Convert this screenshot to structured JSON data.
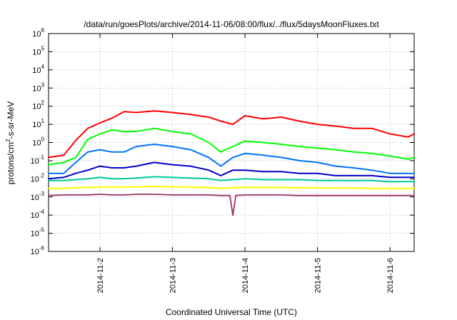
{
  "chart_data": {
    "type": "line",
    "title": "/data/run/goesPlots/archive/2014-11-06/08:00/flux/../flux/5daysMoonFluxes.txt",
    "xlabel": "Coordinated Universal Time (UTC)",
    "ylabel": {
      "prefix": "protons/cm",
      "superscript": "2",
      "suffix": "-s-sr-MeV"
    },
    "yscale": "log",
    "ylim": [
      "1e-6",
      "1e6"
    ],
    "y_ticks": [
      {
        "exp": "6"
      },
      {
        "exp": "5"
      },
      {
        "exp": "4"
      },
      {
        "exp": "3"
      },
      {
        "exp": "2"
      },
      {
        "exp": "1"
      },
      {
        "exp": "0"
      },
      {
        "exp": "-1"
      },
      {
        "exp": "-2"
      },
      {
        "exp": "-3"
      },
      {
        "exp": "-4"
      },
      {
        "exp": "-5"
      },
      {
        "exp": "-6"
      }
    ],
    "y_tick_base": "10",
    "xlim": [
      "2014-11-01T07:00",
      "2014-11-06T08:00"
    ],
    "x_ticks": [
      "2014-11-2",
      "2014-11-3",
      "2014-11-4",
      "2014-11-5",
      "2014-11-6"
    ],
    "x_tick_dates": [
      "2014-11-02",
      "2014-11-03",
      "2014-11-04",
      "2014-11-05",
      "2014-11-06"
    ],
    "grid": true,
    "legend": "none",
    "series": [
      {
        "color": "#ff0000",
        "x": [
          "2014-11-01T07:00",
          "2014-11-01T12:00",
          "2014-11-01T16:00",
          "2014-11-01T20:00",
          "2014-11-02T00:00",
          "2014-11-02T04:00",
          "2014-11-02T08:00",
          "2014-11-02T12:00",
          "2014-11-02T18:00",
          "2014-11-03T00:00",
          "2014-11-03T06:00",
          "2014-11-03T12:00",
          "2014-11-03T16:00",
          "2014-11-03T20:00",
          "2014-11-04T00:00",
          "2014-11-04T06:00",
          "2014-11-04T12:00",
          "2014-11-04T18:00",
          "2014-11-05T00:00",
          "2014-11-05T06:00",
          "2014-11-05T12:00",
          "2014-11-05T18:00",
          "2014-11-06T00:00",
          "2014-11-06T06:00",
          "2014-11-06T08:00"
        ],
        "y": [
          0.15,
          0.2,
          1.3,
          6,
          12,
          22,
          50,
          45,
          55,
          45,
          35,
          25,
          15,
          10,
          30,
          20,
          25,
          15,
          10,
          8,
          6,
          6,
          3,
          2,
          3
        ]
      },
      {
        "color": "#00ff00",
        "x": [
          "2014-11-01T07:00",
          "2014-11-01T12:00",
          "2014-11-01T16:00",
          "2014-11-01T20:00",
          "2014-11-02T00:00",
          "2014-11-02T04:00",
          "2014-11-02T08:00",
          "2014-11-02T12:00",
          "2014-11-02T18:00",
          "2014-11-03T00:00",
          "2014-11-03T06:00",
          "2014-11-03T12:00",
          "2014-11-03T16:00",
          "2014-11-03T20:00",
          "2014-11-04T00:00",
          "2014-11-04T06:00",
          "2014-11-04T12:00",
          "2014-11-04T18:00",
          "2014-11-05T00:00",
          "2014-11-05T06:00",
          "2014-11-05T12:00",
          "2014-11-05T18:00",
          "2014-11-06T00:00",
          "2014-11-06T06:00",
          "2014-11-06T08:00"
        ],
        "y": [
          0.06,
          0.08,
          0.15,
          1.5,
          3,
          5,
          4,
          4,
          6,
          4,
          3,
          1,
          0.3,
          0.6,
          1.2,
          1,
          0.8,
          0.6,
          0.5,
          0.4,
          0.3,
          0.25,
          0.18,
          0.12,
          0.15
        ]
      },
      {
        "color": "#0073ff",
        "x": [
          "2014-11-01T07:00",
          "2014-11-01T12:00",
          "2014-11-01T16:00",
          "2014-11-01T20:00",
          "2014-11-02T00:00",
          "2014-11-02T04:00",
          "2014-11-02T08:00",
          "2014-11-02T12:00",
          "2014-11-02T18:00",
          "2014-11-03T00:00",
          "2014-11-03T06:00",
          "2014-11-03T12:00",
          "2014-11-03T16:00",
          "2014-11-03T20:00",
          "2014-11-04T00:00",
          "2014-11-04T06:00",
          "2014-11-04T12:00",
          "2014-11-04T18:00",
          "2014-11-05T00:00",
          "2014-11-05T06:00",
          "2014-11-05T12:00",
          "2014-11-05T18:00",
          "2014-11-06T00:00",
          "2014-11-06T06:00",
          "2014-11-06T08:00"
        ],
        "y": [
          0.02,
          0.02,
          0.08,
          0.3,
          0.4,
          0.3,
          0.3,
          0.6,
          0.8,
          0.6,
          0.4,
          0.15,
          0.05,
          0.15,
          0.25,
          0.2,
          0.15,
          0.1,
          0.08,
          0.05,
          0.04,
          0.03,
          0.02,
          0.02,
          0.02
        ]
      },
      {
        "color": "#0000cc",
        "x": [
          "2014-11-01T07:00",
          "2014-11-01T12:00",
          "2014-11-01T16:00",
          "2014-11-01T20:00",
          "2014-11-02T00:00",
          "2014-11-02T04:00",
          "2014-11-02T08:00",
          "2014-11-02T12:00",
          "2014-11-02T18:00",
          "2014-11-03T00:00",
          "2014-11-03T06:00",
          "2014-11-03T12:00",
          "2014-11-03T16:00",
          "2014-11-03T20:00",
          "2014-11-04T00:00",
          "2014-11-04T06:00",
          "2014-11-04T12:00",
          "2014-11-04T18:00",
          "2014-11-05T00:00",
          "2014-11-05T06:00",
          "2014-11-05T12:00",
          "2014-11-05T18:00",
          "2014-11-06T00:00",
          "2014-11-06T06:00",
          "2014-11-06T08:00"
        ],
        "y": [
          0.01,
          0.012,
          0.02,
          0.03,
          0.05,
          0.04,
          0.04,
          0.05,
          0.08,
          0.06,
          0.05,
          0.03,
          0.015,
          0.03,
          0.03,
          0.025,
          0.025,
          0.02,
          0.02,
          0.015,
          0.015,
          0.015,
          0.012,
          0.012,
          0.012
        ]
      },
      {
        "color": "#00cc99",
        "x": [
          "2014-11-01T07:00",
          "2014-11-01T12:00",
          "2014-11-01T16:00",
          "2014-11-01T20:00",
          "2014-11-02T00:00",
          "2014-11-02T04:00",
          "2014-11-02T08:00",
          "2014-11-02T12:00",
          "2014-11-02T18:00",
          "2014-11-03T00:00",
          "2014-11-03T06:00",
          "2014-11-03T12:00",
          "2014-11-03T16:00",
          "2014-11-03T20:00",
          "2014-11-04T00:00",
          "2014-11-04T06:00",
          "2014-11-04T12:00",
          "2014-11-04T18:00",
          "2014-11-05T00:00",
          "2014-11-05T06:00",
          "2014-11-05T12:00",
          "2014-11-05T18:00",
          "2014-11-06T00:00",
          "2014-11-06T06:00",
          "2014-11-06T08:00"
        ],
        "y": [
          0.008,
          0.008,
          0.009,
          0.01,
          0.012,
          0.01,
          0.01,
          0.011,
          0.013,
          0.012,
          0.011,
          0.01,
          0.008,
          0.009,
          0.01,
          0.009,
          0.009,
          0.009,
          0.008,
          0.008,
          0.008,
          0.008,
          0.007,
          0.007,
          0.007
        ]
      },
      {
        "color": "#ffff00",
        "x": [
          "2014-11-01T07:00",
          "2014-11-01T12:00",
          "2014-11-01T16:00",
          "2014-11-01T20:00",
          "2014-11-02T00:00",
          "2014-11-02T04:00",
          "2014-11-02T08:00",
          "2014-11-02T12:00",
          "2014-11-02T18:00",
          "2014-11-03T00:00",
          "2014-11-03T06:00",
          "2014-11-03T12:00",
          "2014-11-03T16:00",
          "2014-11-03T20:00",
          "2014-11-04T00:00",
          "2014-11-04T06:00",
          "2014-11-04T12:00",
          "2014-11-04T18:00",
          "2014-11-05T00:00",
          "2014-11-05T06:00",
          "2014-11-05T12:00",
          "2014-11-05T18:00",
          "2014-11-06T00:00",
          "2014-11-06T06:00",
          "2014-11-06T08:00"
        ],
        "y": [
          0.003,
          0.003,
          0.0032,
          0.0033,
          0.0035,
          0.0035,
          0.0035,
          0.0036,
          0.0038,
          0.0036,
          0.0035,
          0.0033,
          0.003,
          0.0032,
          0.0034,
          0.0033,
          0.0033,
          0.0032,
          0.0032,
          0.0031,
          0.0031,
          0.003,
          0.003,
          0.003,
          0.003
        ]
      },
      {
        "color": "#993366",
        "x": [
          "2014-11-01T07:00",
          "2014-11-01T12:00",
          "2014-11-01T16:00",
          "2014-11-01T20:00",
          "2014-11-02T00:00",
          "2014-11-02T04:00",
          "2014-11-02T08:00",
          "2014-11-02T12:00",
          "2014-11-02T18:00",
          "2014-11-03T00:00",
          "2014-11-03T06:00",
          "2014-11-03T12:00",
          "2014-11-03T16:00",
          "2014-11-03T19:00",
          "2014-11-03T20:00",
          "2014-11-03T21:00",
          "2014-11-04T00:00",
          "2014-11-04T06:00",
          "2014-11-04T12:00",
          "2014-11-04T18:00",
          "2014-11-05T00:00",
          "2014-11-05T06:00",
          "2014-11-05T12:00",
          "2014-11-05T18:00",
          "2014-11-06T00:00",
          "2014-11-06T06:00",
          "2014-11-06T08:00"
        ],
        "y": [
          0.0012,
          0.0013,
          0.0013,
          0.0013,
          0.0014,
          0.0013,
          0.0013,
          0.0014,
          0.0014,
          0.0013,
          0.0013,
          0.0013,
          0.0012,
          0.0012,
          0.0001,
          0.0012,
          0.0013,
          0.0013,
          0.0013,
          0.0012,
          0.0012,
          0.0012,
          0.0012,
          0.0012,
          0.0012,
          0.0012,
          0.0012
        ]
      }
    ]
  }
}
